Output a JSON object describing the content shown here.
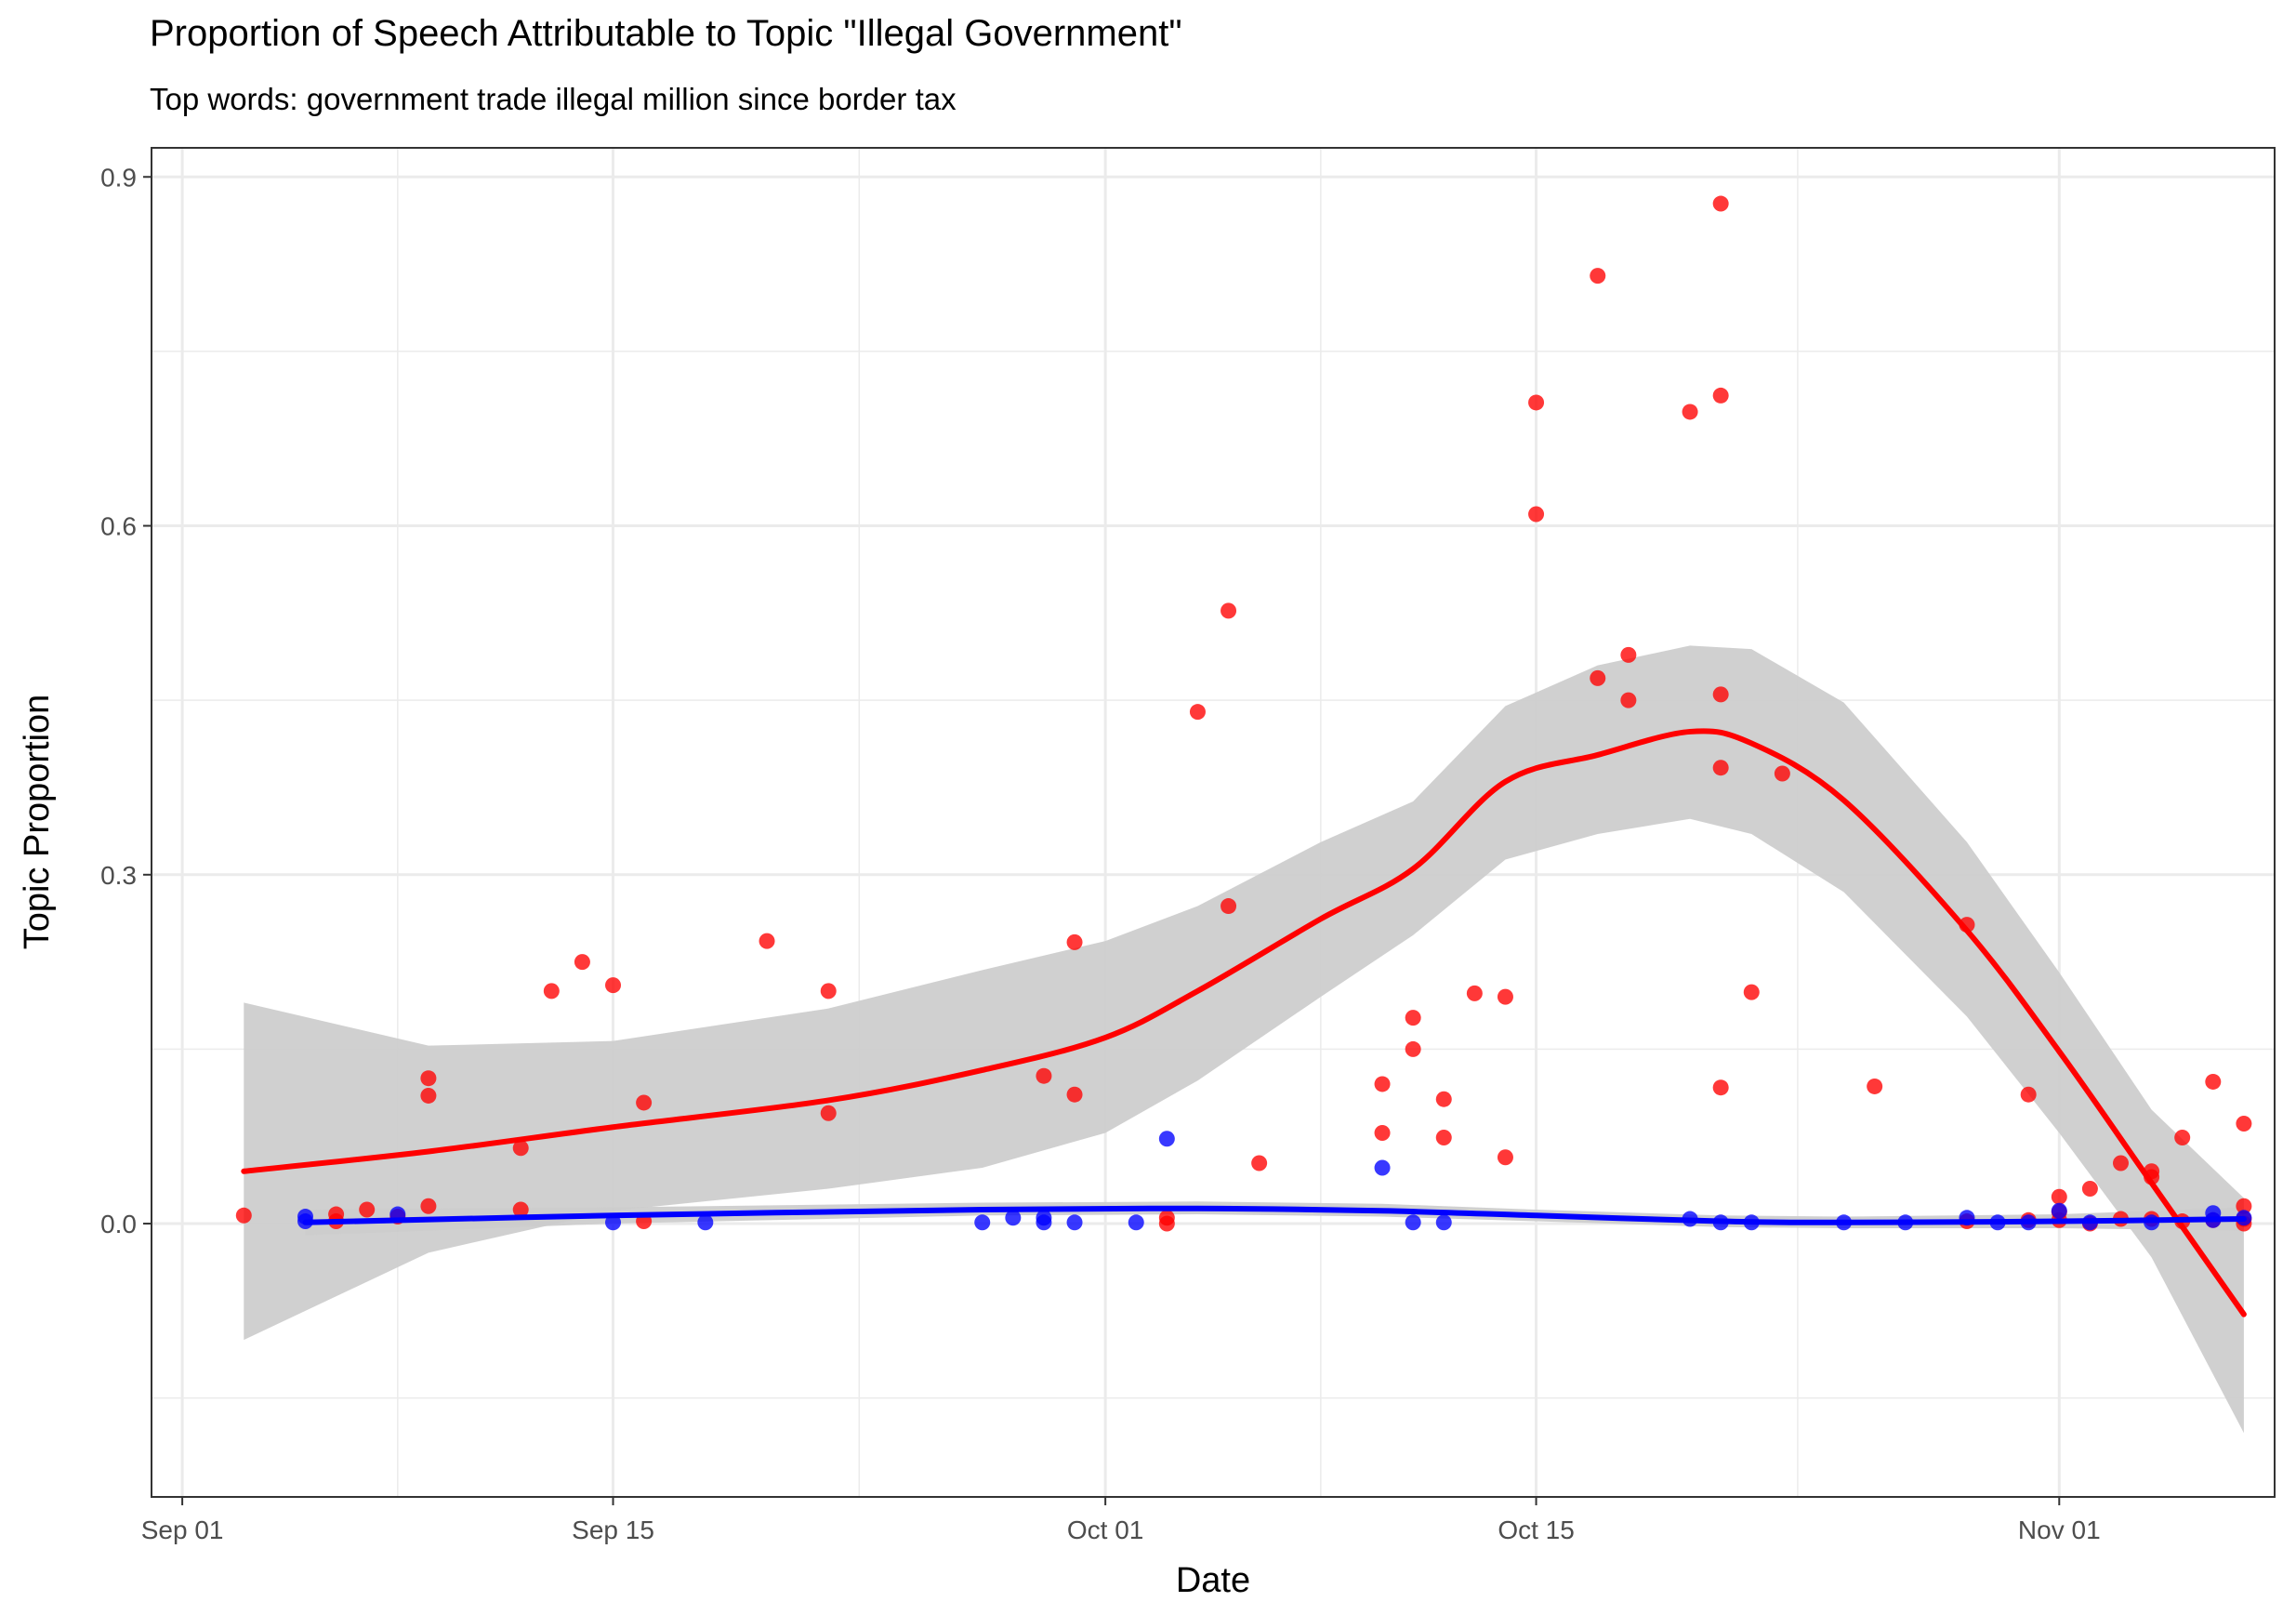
{
  "chart_data": {
    "type": "scatter",
    "title": "Proportion of Speech Attributable to Topic \"Illegal Government\"",
    "subtitle": "Top words: government trade illegal million since border tax",
    "xlabel": "Date",
    "ylabel": "Topic Proportion",
    "x_type": "date",
    "xlim": [
      "2016-08-31",
      "2016-11-08"
    ],
    "ylim": [
      -0.235,
      0.925
    ],
    "x_ticks": [
      {
        "date": "2016-09-01",
        "label": "Sep 01"
      },
      {
        "date": "2016-09-15",
        "label": "Sep 15"
      },
      {
        "date": "2016-10-01",
        "label": "Oct 01"
      },
      {
        "date": "2016-10-15",
        "label": "Oct 15"
      },
      {
        "date": "2016-11-01",
        "label": "Nov 01"
      }
    ],
    "y_ticks": [
      {
        "value": 0.0,
        "label": "0.0"
      },
      {
        "value": 0.3,
        "label": "0.3"
      },
      {
        "value": 0.6,
        "label": "0.6"
      },
      {
        "value": 0.9,
        "label": "0.9"
      }
    ],
    "grid": true,
    "legend": "none",
    "colors": {
      "red": "#ff0000",
      "blue": "#0000ff",
      "band": "#cccccc",
      "grid": "#ebebeb",
      "panel_border": "#333333"
    },
    "series": [
      {
        "color": "red",
        "points": [
          [
            "2016-09-03",
            0.007
          ],
          [
            "2016-09-06",
            0.008
          ],
          [
            "2016-09-06",
            0.002
          ],
          [
            "2016-09-07",
            0.012
          ],
          [
            "2016-09-08",
            0.006
          ],
          [
            "2016-09-09",
            0.125
          ],
          [
            "2016-09-09",
            0.11
          ],
          [
            "2016-09-09",
            0.015
          ],
          [
            "2016-09-12",
            0.065
          ],
          [
            "2016-09-12",
            0.012
          ],
          [
            "2016-09-13",
            0.2
          ],
          [
            "2016-09-14",
            0.225
          ],
          [
            "2016-09-15",
            0.205
          ],
          [
            "2016-09-16",
            0.104
          ],
          [
            "2016-09-16",
            0.002
          ],
          [
            "2016-09-20",
            0.243
          ],
          [
            "2016-09-22",
            0.2
          ],
          [
            "2016-09-22",
            0.095
          ],
          [
            "2016-09-29",
            0.127
          ],
          [
            "2016-09-30",
            0.242
          ],
          [
            "2016-09-30",
            0.111
          ],
          [
            "2016-10-03",
            0.005
          ],
          [
            "2016-10-03",
            0.0
          ],
          [
            "2016-10-04",
            0.44
          ],
          [
            "2016-10-05",
            0.527
          ],
          [
            "2016-10-05",
            0.273
          ],
          [
            "2016-10-06",
            0.052
          ],
          [
            "2016-10-10",
            0.12
          ],
          [
            "2016-10-10",
            0.078
          ],
          [
            "2016-10-11",
            0.177
          ],
          [
            "2016-10-11",
            0.15
          ],
          [
            "2016-10-12",
            0.107
          ],
          [
            "2016-10-12",
            0.074
          ],
          [
            "2016-10-13",
            0.198
          ],
          [
            "2016-10-14",
            0.195
          ],
          [
            "2016-10-14",
            0.057
          ],
          [
            "2016-10-15",
            0.706
          ],
          [
            "2016-10-15",
            0.61
          ],
          [
            "2016-10-17",
            0.815
          ],
          [
            "2016-10-17",
            0.469
          ],
          [
            "2016-10-18",
            0.489
          ],
          [
            "2016-10-18",
            0.45
          ],
          [
            "2016-10-20",
            0.698
          ],
          [
            "2016-10-21",
            0.877
          ],
          [
            "2016-10-21",
            0.712
          ],
          [
            "2016-10-21",
            0.455
          ],
          [
            "2016-10-21",
            0.392
          ],
          [
            "2016-10-21",
            0.117
          ],
          [
            "2016-10-22",
            0.199
          ],
          [
            "2016-10-23",
            0.387
          ],
          [
            "2016-10-26",
            0.118
          ],
          [
            "2016-10-29",
            0.257
          ],
          [
            "2016-10-29",
            0.002
          ],
          [
            "2016-10-31",
            0.111
          ],
          [
            "2016-10-31",
            0.003
          ],
          [
            "2016-11-01",
            0.023
          ],
          [
            "2016-11-01",
            0.01
          ],
          [
            "2016-11-01",
            0.003
          ],
          [
            "2016-11-02",
            0.03
          ],
          [
            "2016-11-02",
            0.0
          ],
          [
            "2016-11-03",
            0.052
          ],
          [
            "2016-11-03",
            0.004
          ],
          [
            "2016-11-04",
            0.045
          ],
          [
            "2016-11-04",
            0.04
          ],
          [
            "2016-11-04",
            0.004
          ],
          [
            "2016-11-05",
            0.074
          ],
          [
            "2016-11-05",
            0.002
          ],
          [
            "2016-11-06",
            0.122
          ],
          [
            "2016-11-06",
            0.003
          ],
          [
            "2016-11-07",
            0.086
          ],
          [
            "2016-11-07",
            0.015
          ],
          [
            "2016-11-07",
            0.004
          ],
          [
            "2016-11-07",
            0.0
          ]
        ],
        "smooth": [
          [
            "2016-09-03",
            0.045
          ],
          [
            "2016-09-09",
            0.062
          ],
          [
            "2016-09-15",
            0.083
          ],
          [
            "2016-09-22",
            0.106
          ],
          [
            "2016-09-27",
            0.132
          ],
          [
            "2016-10-01",
            0.16
          ],
          [
            "2016-10-04",
            0.2
          ],
          [
            "2016-10-08",
            0.262
          ],
          [
            "2016-10-11",
            0.305
          ],
          [
            "2016-10-14",
            0.38
          ],
          [
            "2016-10-17",
            0.403
          ],
          [
            "2016-10-20",
            0.423
          ],
          [
            "2016-10-22",
            0.413
          ],
          [
            "2016-10-25",
            0.364
          ],
          [
            "2016-10-29",
            0.252
          ],
          [
            "2016-11-01",
            0.148
          ],
          [
            "2016-11-04",
            0.035
          ],
          [
            "2016-11-07",
            -0.078
          ]
        ],
        "band": [
          [
            "2016-09-03",
            0.19,
            -0.1
          ],
          [
            "2016-09-09",
            0.153,
            -0.025
          ],
          [
            "2016-09-15",
            0.157,
            0.011
          ],
          [
            "2016-09-22",
            0.185,
            0.03
          ],
          [
            "2016-09-27",
            0.218,
            0.048
          ],
          [
            "2016-10-01",
            0.243,
            0.078
          ],
          [
            "2016-10-04",
            0.273,
            0.123
          ],
          [
            "2016-10-08",
            0.328,
            0.195
          ],
          [
            "2016-10-11",
            0.363,
            0.248
          ],
          [
            "2016-10-14",
            0.445,
            0.313
          ],
          [
            "2016-10-17",
            0.48,
            0.335
          ],
          [
            "2016-10-20",
            0.497,
            0.348
          ],
          [
            "2016-10-22",
            0.494,
            0.335
          ],
          [
            "2016-10-25",
            0.448,
            0.285
          ],
          [
            "2016-10-29",
            0.328,
            0.178
          ],
          [
            "2016-11-01",
            0.216,
            0.078
          ],
          [
            "2016-11-04",
            0.098,
            -0.029
          ],
          [
            "2016-11-07",
            0.022,
            -0.18
          ]
        ]
      },
      {
        "color": "blue",
        "points": [
          [
            "2016-09-05",
            0.006
          ],
          [
            "2016-09-05",
            0.002
          ],
          [
            "2016-09-08",
            0.008
          ],
          [
            "2016-09-15",
            0.001
          ],
          [
            "2016-09-18",
            0.001
          ],
          [
            "2016-09-27",
            0.001
          ],
          [
            "2016-09-28",
            0.005
          ],
          [
            "2016-09-29",
            0.005
          ],
          [
            "2016-09-29",
            0.001
          ],
          [
            "2016-09-30",
            0.001
          ],
          [
            "2016-10-02",
            0.001
          ],
          [
            "2016-10-03",
            0.073
          ],
          [
            "2016-10-10",
            0.048
          ],
          [
            "2016-10-11",
            0.001
          ],
          [
            "2016-10-12",
            0.001
          ],
          [
            "2016-10-20",
            0.004
          ],
          [
            "2016-10-21",
            0.001
          ],
          [
            "2016-10-22",
            0.001
          ],
          [
            "2016-10-25",
            0.001
          ],
          [
            "2016-10-27",
            0.001
          ],
          [
            "2016-10-29",
            0.005
          ],
          [
            "2016-10-30",
            0.001
          ],
          [
            "2016-10-31",
            0.001
          ],
          [
            "2016-11-01",
            0.011
          ],
          [
            "2016-11-02",
            0.001
          ],
          [
            "2016-11-04",
            0.001
          ],
          [
            "2016-11-06",
            0.009
          ],
          [
            "2016-11-06",
            0.003
          ],
          [
            "2016-11-07",
            0.005
          ]
        ],
        "smooth": [
          [
            "2016-09-05",
            0.001
          ],
          [
            "2016-09-15",
            0.007
          ],
          [
            "2016-09-27",
            0.012
          ],
          [
            "2016-10-04",
            0.013
          ],
          [
            "2016-10-10",
            0.011
          ],
          [
            "2016-10-15",
            0.007
          ],
          [
            "2016-10-21",
            0.002
          ],
          [
            "2016-10-25",
            0.001
          ],
          [
            "2016-11-01",
            0.002
          ],
          [
            "2016-11-07",
            0.004
          ]
        ],
        "band": [
          [
            "2016-09-05",
            0.012,
            -0.01
          ],
          [
            "2016-09-15",
            0.014,
            0.0
          ],
          [
            "2016-09-27",
            0.018,
            0.007
          ],
          [
            "2016-10-04",
            0.019,
            0.008
          ],
          [
            "2016-10-10",
            0.017,
            0.006
          ],
          [
            "2016-10-15",
            0.012,
            0.002
          ],
          [
            "2016-10-21",
            0.007,
            -0.003
          ],
          [
            "2016-10-25",
            0.006,
            -0.004
          ],
          [
            "2016-11-01",
            0.008,
            -0.004
          ],
          [
            "2016-11-07",
            0.014,
            -0.006
          ]
        ]
      }
    ]
  }
}
